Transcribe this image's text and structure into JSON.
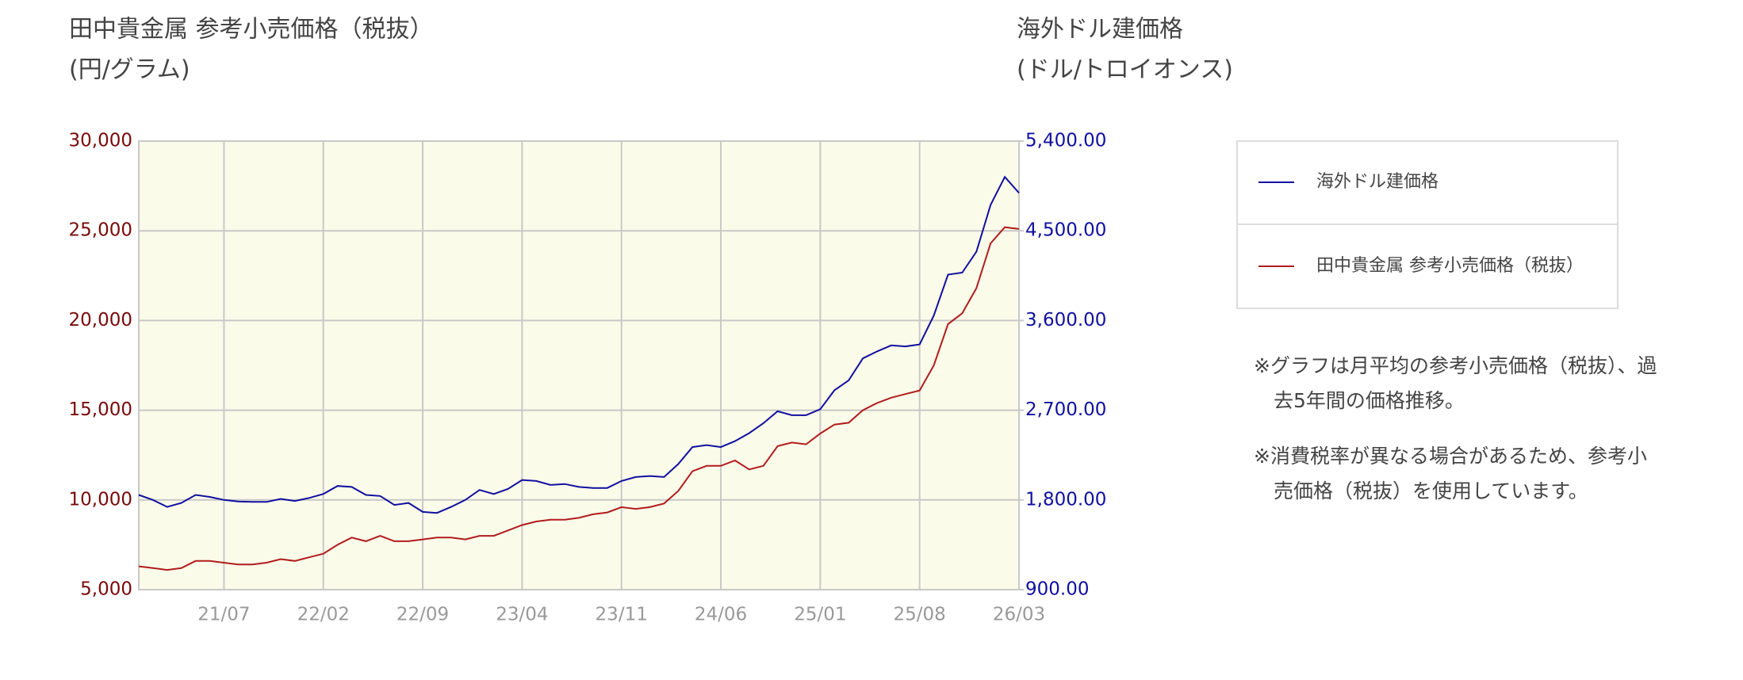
{
  "chart_data": {
    "type": "line",
    "y_label": "田中貴金属 参考小売価格（税抜）",
    "y_unit": "(円/グラム)",
    "y2_label": "海外ドル建価格",
    "y2_unit": "(ドル/トロイオンス)",
    "categories": [
      null,
      null,
      null,
      null,
      null,
      null,
      "21/07",
      null,
      null,
      null,
      null,
      null,
      null,
      "22/02",
      null,
      null,
      null,
      null,
      null,
      null,
      "22/09",
      null,
      null,
      null,
      null,
      null,
      null,
      "23/04",
      null,
      null,
      null,
      null,
      null,
      null,
      "23/11",
      null,
      null,
      null,
      null,
      null,
      null,
      "24/06",
      null,
      null,
      null,
      null,
      null,
      null,
      "25/01",
      null,
      null,
      null,
      null,
      null,
      null,
      "25/08",
      null,
      null,
      null,
      null,
      null,
      null,
      "26/03"
    ],
    "series": [
      {
        "name": "海外ドル建価格",
        "color": "#1010a0",
        "axis": "y2",
        "values": [
          1850,
          1800,
          1730,
          1770,
          1850,
          1830,
          1800,
          1785,
          1780,
          1780,
          1810,
          1790,
          1820,
          1860,
          1940,
          1930,
          1850,
          1840,
          1750,
          1770,
          1680,
          1670,
          1730,
          1800,
          1900,
          1860,
          1910,
          2000,
          1990,
          1950,
          1960,
          1930,
          1920,
          1920,
          1990,
          2030,
          2040,
          2030,
          2160,
          2330,
          2350,
          2330,
          2390,
          2470,
          2570,
          2690,
          2650,
          2650,
          2710,
          2900,
          3000,
          3220,
          3290,
          3350,
          3340,
          3360,
          3650,
          4060,
          4080,
          4290,
          4760,
          5040,
          4880
        ]
      },
      {
        "name": "田中貴金属 参考小売価格（税抜）",
        "color": "#b01c1c",
        "values": [
          6300,
          6200,
          6100,
          6200,
          6600,
          6600,
          6500,
          6400,
          6400,
          6500,
          6700,
          6600,
          6800,
          7000,
          7500,
          7900,
          7700,
          8000,
          7700,
          7700,
          7800,
          7900,
          7900,
          7800,
          8000,
          8000,
          8300,
          8600,
          8800,
          8900,
          8900,
          9000,
          9200,
          9300,
          9600,
          9500,
          9600,
          9800,
          10500,
          11600,
          11900,
          11900,
          12200,
          11700,
          11900,
          13000,
          13200,
          13100,
          13700,
          14200,
          14300,
          15000,
          15400,
          15700,
          15900,
          16100,
          17500,
          19800,
          20400,
          21800,
          24300,
          25200,
          25100
        ]
      }
    ],
    "ylim": [
      5000,
      30000
    ],
    "yticks": [
      {
        "value": 5000,
        "label": "5,000"
      },
      {
        "value": 10000,
        "label": "10,000"
      },
      {
        "value": 15000,
        "label": "15,000"
      },
      {
        "value": 20000,
        "label": "20,000"
      },
      {
        "value": 25000,
        "label": "25,000"
      },
      {
        "value": 30000,
        "label": "30,000"
      }
    ],
    "y2lim": [
      900,
      5400
    ],
    "y2ticks": [
      {
        "value": 900,
        "label": "900.00"
      },
      {
        "value": 1800,
        "label": "1,800.00"
      },
      {
        "value": 2700,
        "label": "2,700.00"
      },
      {
        "value": 3600,
        "label": "3,600.00"
      },
      {
        "value": 4500,
        "label": "4,500.00"
      },
      {
        "value": 5400,
        "label": "5,400.00"
      }
    ],
    "grid": true,
    "notes": [
      "※グラフは月平均の参考小売価格（税抜）、過去5年間の価格推移。",
      "※消費税率が異なる場合があるため、参考小売価格（税抜）を使用しています。"
    ]
  }
}
